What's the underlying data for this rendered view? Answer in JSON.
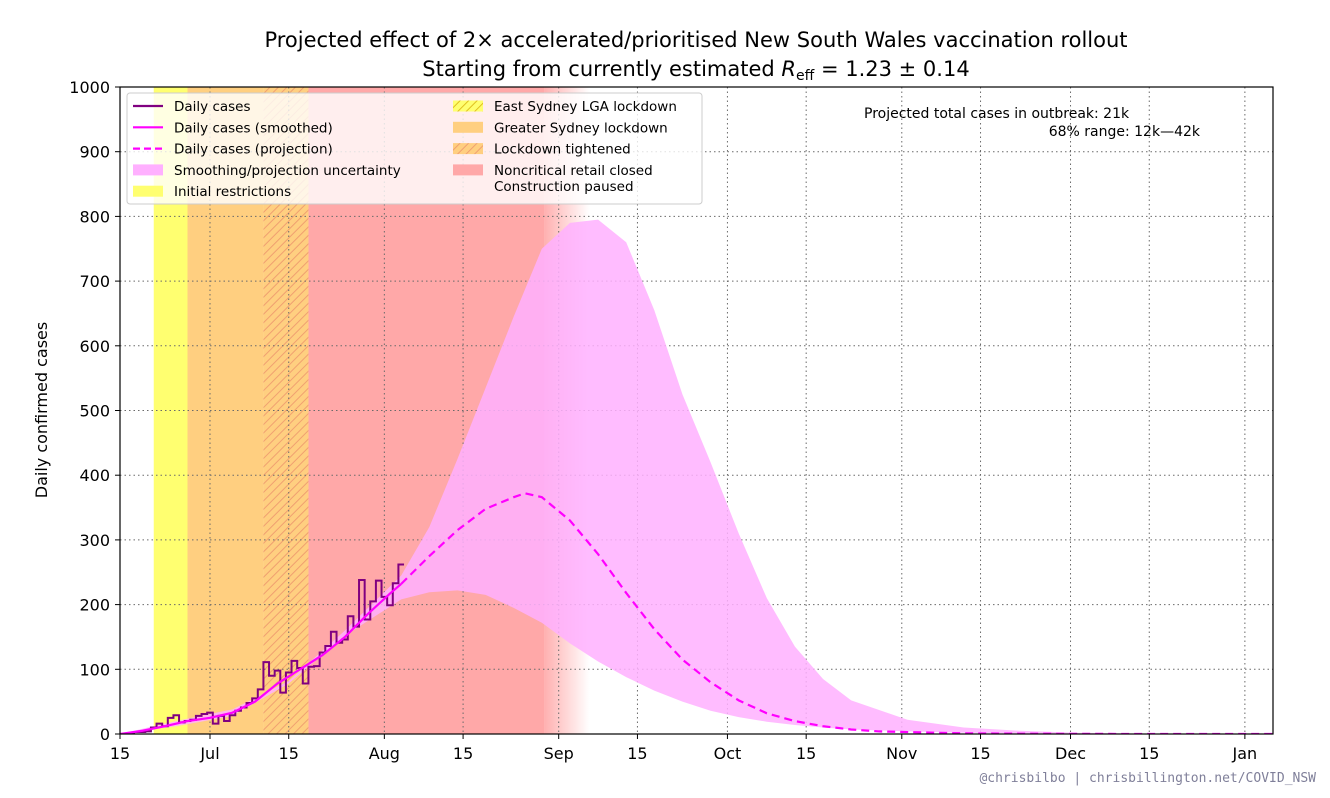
{
  "chart_data": {
    "type": "line",
    "title": "Projected effect of 2× accelerated/prioritised New South Wales vaccination rollout",
    "subtitle_prefix": "Starting from currently estimated ",
    "subtitle_r": "R",
    "subtitle_sub": "eff",
    "subtitle_value": " = 1.23 ± 0.14",
    "ylabel": "Daily confirmed cases",
    "ylim": [
      0,
      1000
    ],
    "yticks": [
      0,
      100,
      200,
      300,
      400,
      500,
      600,
      700,
      800,
      900,
      1000
    ],
    "xlim_days": [
      0,
      205
    ],
    "xticks": [
      {
        "day": 0,
        "label": "15"
      },
      {
        "day": 16,
        "label": "Jul"
      },
      {
        "day": 30,
        "label": "15"
      },
      {
        "day": 47,
        "label": "Aug"
      },
      {
        "day": 61,
        "label": "15"
      },
      {
        "day": 78,
        "label": "Sep"
      },
      {
        "day": 92,
        "label": "15"
      },
      {
        "day": 108,
        "label": "Oct"
      },
      {
        "day": 122,
        "label": "15"
      },
      {
        "day": 139,
        "label": "Nov"
      },
      {
        "day": 153,
        "label": "15"
      },
      {
        "day": 169,
        "label": "Dec"
      },
      {
        "day": 183,
        "label": "15"
      },
      {
        "day": 200,
        "label": "Jan"
      }
    ],
    "grid": true,
    "legend_placement": "top-left",
    "legend": [
      {
        "label": "Daily cases",
        "kind": "line",
        "color": "#800080"
      },
      {
        "label": "Daily cases (smoothed)",
        "kind": "line",
        "color": "#ff00ff"
      },
      {
        "label": "Daily cases (projection)",
        "kind": "dashed",
        "color": "#ff00ff"
      },
      {
        "label": "Smoothing/projection uncertainty",
        "kind": "patch",
        "color": "#ffb0ff"
      },
      {
        "label": "Initial restrictions",
        "kind": "patch",
        "color": "#ffff70"
      },
      {
        "label": "East Sydney LGA lockdown",
        "kind": "hatch-yellow",
        "color": "#ffd030"
      },
      {
        "label": "Greater Sydney lockdown",
        "kind": "patch",
        "color": "#ffcf80"
      },
      {
        "label": "Lockdown tightened",
        "kind": "hatch-orange",
        "color": "#ffb870"
      },
      {
        "label": "Noncritical retail closed",
        "label2": "Construction paused",
        "kind": "patch",
        "color": "#ffa8a8"
      }
    ],
    "restriction_periods": [
      {
        "name": "Initial restrictions",
        "start_day": 6,
        "end_day": 12,
        "color": "#ffff70"
      },
      {
        "name": "Greater Sydney lockdown",
        "start_day": 12,
        "end_day": 25.5,
        "color": "#ffcf80"
      },
      {
        "name": "Lockdown tightened",
        "start_day": 25.5,
        "end_day": 33.5,
        "color": "#ffcf80"
      },
      {
        "name": "Noncritical retail closed / Construction paused",
        "start_day": 33.5,
        "end_day": 75.5,
        "color": "#ffa8a8"
      }
    ],
    "series": [
      {
        "name": "Daily cases",
        "style": "step",
        "color": "#800080",
        "x": [
          0,
          1,
          2,
          3,
          4,
          5,
          6,
          7,
          8,
          9,
          10,
          11,
          12,
          13,
          14,
          15,
          16,
          17,
          18,
          19,
          20,
          21,
          22,
          23,
          24,
          25,
          26,
          27,
          28,
          29,
          30,
          31,
          32,
          33,
          34,
          35,
          36,
          37,
          38,
          39,
          40,
          41,
          42,
          43,
          44,
          45,
          46,
          47,
          48,
          49,
          50
        ],
        "y": [
          0,
          0,
          0,
          3,
          3,
          4,
          10,
          16,
          12,
          25,
          29,
          18,
          20,
          22,
          28,
          31,
          33,
          16,
          28,
          20,
          29,
          36,
          41,
          48,
          55,
          69,
          111,
          90,
          98,
          64,
          95,
          113,
          102,
          78,
          104,
          105,
          126,
          136,
          158,
          141,
          146,
          182,
          166,
          238,
          177,
          205,
          237,
          212,
          199,
          233,
          262
        ]
      },
      {
        "name": "Daily cases (smoothed)",
        "style": "solid",
        "color": "#ff00ff",
        "x": [
          0,
          4,
          8,
          12,
          16,
          20,
          24,
          28,
          32,
          36,
          40,
          44,
          48,
          50
        ],
        "y": [
          0,
          5,
          12,
          20,
          25,
          33,
          50,
          78,
          100,
          122,
          150,
          185,
          217,
          232
        ]
      },
      {
        "name": "Daily cases (projection)",
        "style": "dashed",
        "color": "#ff00ff",
        "x": [
          50,
          55,
          60,
          65,
          70,
          72,
          75,
          80,
          85,
          90,
          95,
          100,
          105,
          110,
          115,
          120,
          125,
          130,
          135,
          140,
          150,
          160,
          170,
          180,
          190,
          200,
          205
        ],
        "y": [
          232,
          275,
          315,
          348,
          366,
          372,
          366,
          330,
          278,
          218,
          162,
          115,
          80,
          52,
          32,
          20,
          12,
          7,
          4,
          3,
          1,
          0.5,
          0.2,
          0.1,
          0,
          0,
          0
        ]
      }
    ],
    "uncertainty_band": {
      "name": "Smoothing/projection uncertainty",
      "color": "#ffb0ff",
      "x": [
        0,
        10,
        20,
        30,
        40,
        50,
        55,
        60,
        65,
        70,
        75,
        80,
        85,
        90,
        95,
        100,
        105,
        110,
        115,
        120,
        125,
        130,
        140,
        150,
        160,
        170,
        180,
        190,
        200,
        205
      ],
      "lower": [
        0,
        12,
        28,
        78,
        152,
        208,
        219,
        222,
        215,
        195,
        172,
        140,
        112,
        88,
        67,
        50,
        36,
        26,
        19,
        14,
        10,
        7,
        4,
        2,
        1,
        0,
        0,
        0,
        0,
        0
      ],
      "upper": [
        0,
        20,
        38,
        82,
        160,
        245,
        320,
        425,
        535,
        645,
        750,
        790,
        795,
        760,
        655,
        525,
        420,
        310,
        210,
        135,
        85,
        52,
        22,
        10,
        5,
        2,
        1,
        0,
        0,
        0
      ]
    },
    "annotation": {
      "line1": "Projected total cases in outbreak:  21k",
      "line2": "68% range:  12k—42k"
    },
    "credit": "@chrisbilbo | chrisbillington.net/COVID_NSW"
  }
}
